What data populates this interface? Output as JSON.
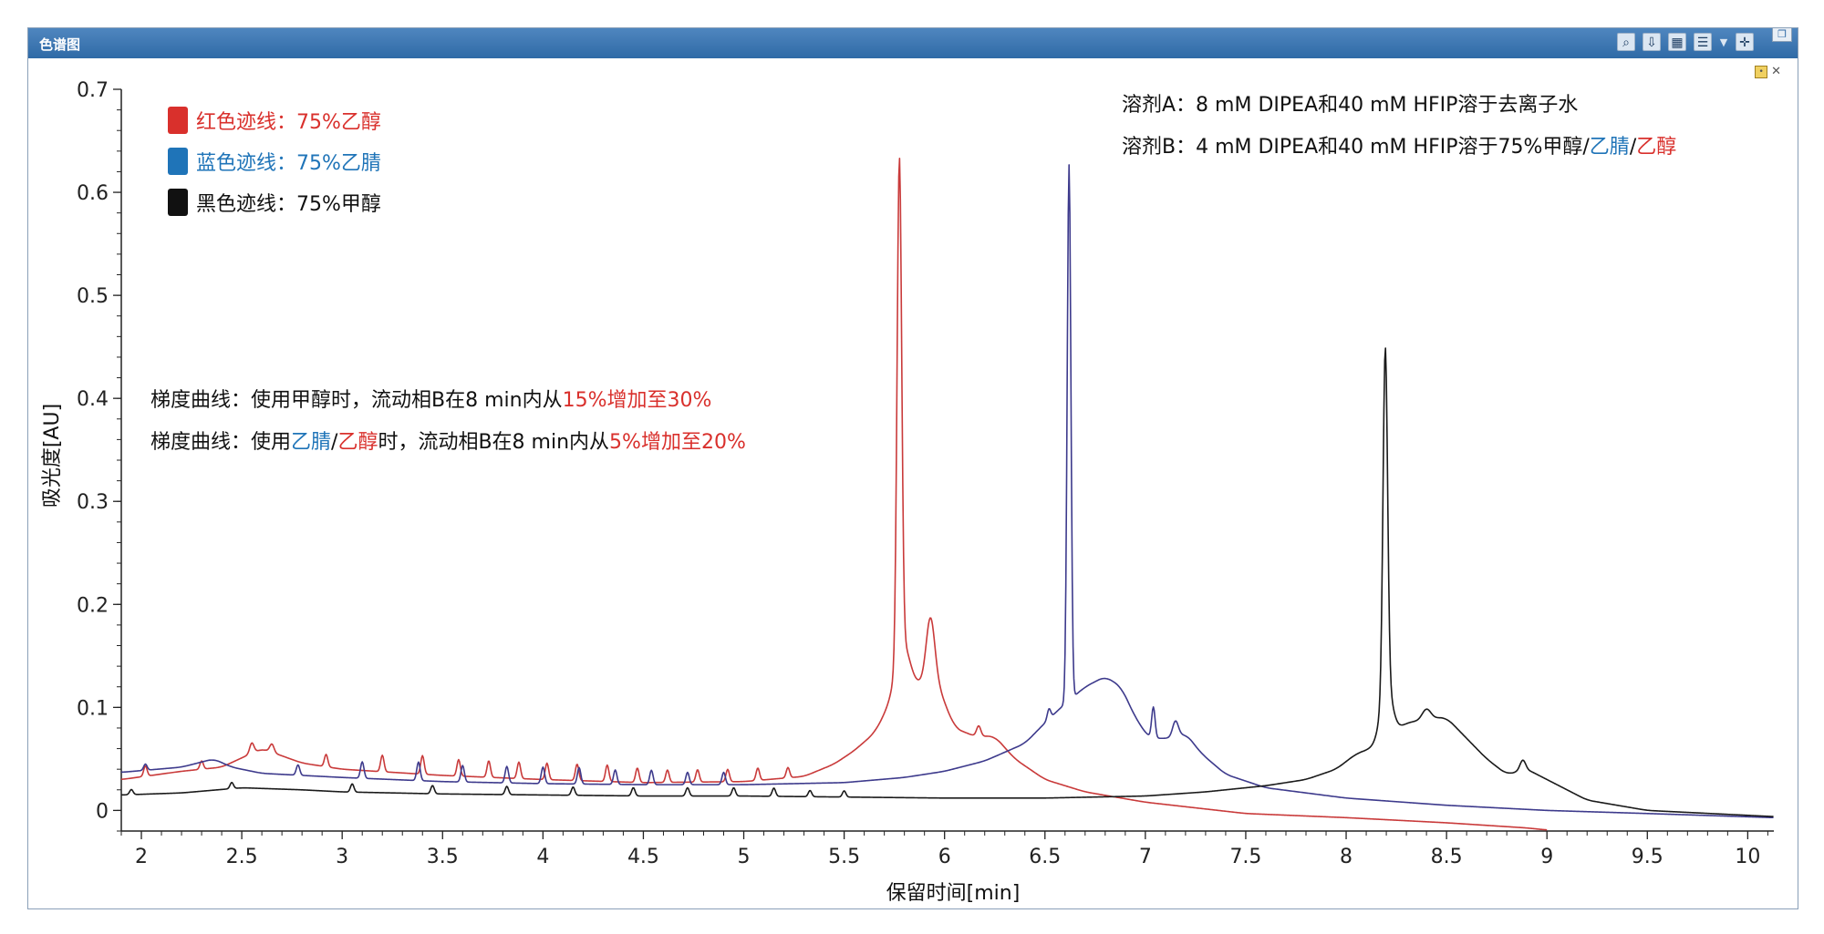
{
  "window": {
    "title": "色谱图",
    "toolbar_icons": [
      "zoom-icon",
      "export-icon",
      "table-icon",
      "layers-icon",
      "move-icon"
    ]
  },
  "chart_data": {
    "type": "line",
    "xlabel": "保留时间[min]",
    "ylabel": "吸光度[AU]",
    "xlim": [
      1.9,
      10.13
    ],
    "ylim": [
      -0.02,
      0.7
    ],
    "x_ticks": [
      "2",
      "2.5",
      "3",
      "3.5",
      "4",
      "4.5",
      "5",
      "5.5",
      "6",
      "6.5",
      "7",
      "7.5",
      "8",
      "8.5",
      "9",
      "9.5",
      "10"
    ],
    "y_ticks": [
      "0",
      "0.1",
      "0.2",
      "0.3",
      "0.4",
      "0.5",
      "0.6",
      "0.7"
    ],
    "legend": {
      "position": "top-left",
      "items": [
        {
          "label": "红色迹线：",
          "value": "75%乙醇",
          "color": "#d9302c"
        },
        {
          "label": "蓝色迹线：",
          "value": "75%乙腈",
          "color": "#1f74b8"
        },
        {
          "label": "黑色迹线：",
          "value": "75%甲醇",
          "color": "#111111"
        }
      ]
    },
    "series": [
      {
        "color": "#c93a3a",
        "baseline": [
          [
            1.9,
            0.03
          ],
          [
            2.2,
            0.038
          ],
          [
            2.4,
            0.042
          ],
          [
            2.6,
            0.06
          ],
          [
            2.8,
            0.046
          ],
          [
            3.0,
            0.04
          ],
          [
            3.5,
            0.034
          ],
          [
            4.0,
            0.03
          ],
          [
            4.5,
            0.027
          ],
          [
            5.0,
            0.028
          ],
          [
            5.3,
            0.033
          ],
          [
            5.45,
            0.045
          ],
          [
            5.55,
            0.058
          ],
          [
            5.65,
            0.075
          ],
          [
            5.72,
            0.1
          ],
          [
            5.85,
            0.12
          ],
          [
            5.95,
            0.13
          ],
          [
            6.05,
            0.08
          ],
          [
            6.15,
            0.072
          ],
          [
            6.25,
            0.072
          ],
          [
            6.35,
            0.05
          ],
          [
            6.5,
            0.03
          ],
          [
            6.7,
            0.018
          ],
          [
            7.0,
            0.008
          ],
          [
            7.5,
            -0.003
          ],
          [
            8.0,
            -0.007
          ],
          [
            8.5,
            -0.012
          ],
          [
            8.9,
            -0.017
          ],
          [
            9.0,
            -0.019
          ]
        ],
        "peaks": [
          [
            5.775,
            0.48,
            0.016
          ],
          [
            5.93,
            0.06,
            0.03
          ],
          [
            5.79,
            0.05,
            0.05
          ],
          [
            2.02,
            0.01,
            0.012
          ],
          [
            2.3,
            0.008,
            0.012
          ],
          [
            2.55,
            0.01,
            0.015
          ],
          [
            2.65,
            0.008,
            0.015
          ],
          [
            2.92,
            0.012,
            0.012
          ],
          [
            3.2,
            0.016,
            0.012
          ],
          [
            3.4,
            0.018,
            0.012
          ],
          [
            3.58,
            0.016,
            0.012
          ],
          [
            3.73,
            0.016,
            0.012
          ],
          [
            3.88,
            0.016,
            0.012
          ],
          [
            4.02,
            0.016,
            0.012
          ],
          [
            4.17,
            0.016,
            0.012
          ],
          [
            4.32,
            0.016,
            0.012
          ],
          [
            4.47,
            0.014,
            0.012
          ],
          [
            4.62,
            0.012,
            0.012
          ],
          [
            4.77,
            0.012,
            0.012
          ],
          [
            4.92,
            0.012,
            0.012
          ],
          [
            5.07,
            0.012,
            0.012
          ],
          [
            5.22,
            0.01,
            0.012
          ],
          [
            6.17,
            0.01,
            0.015
          ]
        ]
      },
      {
        "color": "#3d3a8c",
        "baseline": [
          [
            1.9,
            0.037
          ],
          [
            2.2,
            0.042
          ],
          [
            2.36,
            0.05
          ],
          [
            2.45,
            0.042
          ],
          [
            2.6,
            0.036
          ],
          [
            3.0,
            0.032
          ],
          [
            3.5,
            0.028
          ],
          [
            4.0,
            0.026
          ],
          [
            4.5,
            0.025
          ],
          [
            5.0,
            0.025
          ],
          [
            5.5,
            0.027
          ],
          [
            5.8,
            0.032
          ],
          [
            6.0,
            0.038
          ],
          [
            6.2,
            0.048
          ],
          [
            6.4,
            0.065
          ],
          [
            6.5,
            0.085
          ],
          [
            6.58,
            0.1
          ],
          [
            6.7,
            0.12
          ],
          [
            6.8,
            0.13
          ],
          [
            6.88,
            0.12
          ],
          [
            6.95,
            0.09
          ],
          [
            7.02,
            0.07
          ],
          [
            7.12,
            0.07
          ],
          [
            7.2,
            0.075
          ],
          [
            7.28,
            0.055
          ],
          [
            7.4,
            0.035
          ],
          [
            7.6,
            0.022
          ],
          [
            8.0,
            0.012
          ],
          [
            8.5,
            0.005
          ],
          [
            9.0,
            0.0
          ],
          [
            9.5,
            -0.003
          ],
          [
            10.13,
            -0.007
          ]
        ],
        "peaks": [
          [
            6.62,
            0.52,
            0.013
          ],
          [
            7.04,
            0.03,
            0.012
          ],
          [
            7.15,
            0.015,
            0.02
          ],
          [
            6.52,
            0.01,
            0.012
          ],
          [
            2.02,
            0.006,
            0.012
          ],
          [
            2.78,
            0.01,
            0.012
          ],
          [
            3.1,
            0.016,
            0.012
          ],
          [
            3.38,
            0.018,
            0.012
          ],
          [
            3.6,
            0.016,
            0.012
          ],
          [
            3.82,
            0.016,
            0.012
          ],
          [
            4.0,
            0.016,
            0.012
          ],
          [
            4.18,
            0.016,
            0.012
          ],
          [
            4.36,
            0.014,
            0.012
          ],
          [
            4.54,
            0.014,
            0.012
          ],
          [
            4.72,
            0.012,
            0.012
          ],
          [
            4.9,
            0.012,
            0.012
          ]
        ]
      },
      {
        "color": "#1a1a1a",
        "baseline": [
          [
            1.9,
            0.015
          ],
          [
            2.2,
            0.017
          ],
          [
            2.5,
            0.022
          ],
          [
            2.8,
            0.02
          ],
          [
            3.0,
            0.018
          ],
          [
            3.5,
            0.016
          ],
          [
            4.0,
            0.015
          ],
          [
            4.5,
            0.014
          ],
          [
            5.0,
            0.014
          ],
          [
            5.5,
            0.013
          ],
          [
            6.0,
            0.012
          ],
          [
            6.5,
            0.012
          ],
          [
            7.0,
            0.014
          ],
          [
            7.3,
            0.018
          ],
          [
            7.6,
            0.024
          ],
          [
            7.8,
            0.03
          ],
          [
            7.95,
            0.04
          ],
          [
            8.05,
            0.055
          ],
          [
            8.12,
            0.06
          ],
          [
            8.3,
            0.085
          ],
          [
            8.45,
            0.09
          ],
          [
            8.5,
            0.09
          ],
          [
            8.6,
            0.07
          ],
          [
            8.7,
            0.05
          ],
          [
            8.8,
            0.035
          ],
          [
            8.9,
            0.04
          ],
          [
            9.0,
            0.03
          ],
          [
            9.2,
            0.01
          ],
          [
            9.5,
            0.0
          ],
          [
            10.13,
            -0.006
          ]
        ],
        "peaks": [
          [
            8.195,
            0.33,
            0.016
          ],
          [
            8.2,
            0.05,
            0.04
          ],
          [
            8.4,
            0.01,
            0.03
          ],
          [
            8.88,
            0.01,
            0.02
          ],
          [
            1.95,
            0.005,
            0.012
          ],
          [
            2.45,
            0.006,
            0.012
          ],
          [
            3.05,
            0.008,
            0.012
          ],
          [
            3.45,
            0.008,
            0.012
          ],
          [
            3.82,
            0.008,
            0.012
          ],
          [
            4.15,
            0.008,
            0.012
          ],
          [
            4.45,
            0.008,
            0.012
          ],
          [
            4.72,
            0.008,
            0.012
          ],
          [
            4.95,
            0.008,
            0.012
          ],
          [
            5.15,
            0.008,
            0.012
          ],
          [
            5.33,
            0.006,
            0.012
          ],
          [
            5.5,
            0.006,
            0.012
          ]
        ]
      }
    ],
    "annotations": {
      "solvent_a": [
        {
          "text": "溶剂A：8 mM DIPEA和40 mM HFIP溶于去离子水",
          "color": "#111111"
        }
      ],
      "solvent_b": [
        {
          "text": "溶剂B：4 mM DIPEA和40 mM HFIP溶于75%甲醇/",
          "color": "#111111"
        },
        {
          "text": "乙腈",
          "color": "#1f74b8"
        },
        {
          "text": "/",
          "color": "#111111"
        },
        {
          "text": "乙醇",
          "color": "#d9302c"
        }
      ],
      "gradient_1": [
        {
          "text": "梯度曲线：使用甲醇时，流动相B在8 min内从",
          "color": "#111111"
        },
        {
          "text": "15%增加至30%",
          "color": "#d9302c"
        }
      ],
      "gradient_2": [
        {
          "text": "梯度曲线：使用",
          "color": "#111111"
        },
        {
          "text": "乙腈",
          "color": "#1f74b8"
        },
        {
          "text": "/",
          "color": "#111111"
        },
        {
          "text": "乙醇",
          "color": "#d9302c"
        },
        {
          "text": "时，流动相B在8 min内从",
          "color": "#111111"
        },
        {
          "text": "5%增加至20%",
          "color": "#d9302c"
        }
      ]
    }
  }
}
